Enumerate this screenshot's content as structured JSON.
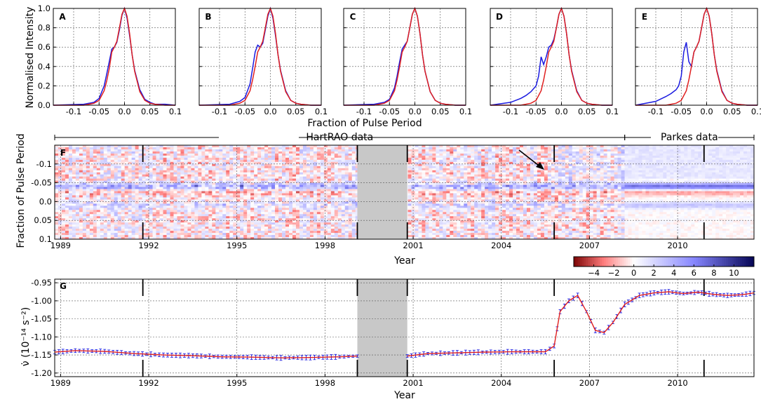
{
  "profiles": {
    "ylabel": "Normalised Intensity",
    "xlabel": "Fraction of Pulse Period",
    "y_ticks": [
      "0.0",
      "0.2",
      "0.4",
      "0.6",
      "0.8",
      "1.0"
    ],
    "x_ticks": [
      "-0.1",
      "-0.05",
      "0.0",
      "0.05",
      "0.1"
    ]
  },
  "heatmap": {
    "ylabel": "Fraction of Pulse Period",
    "xlabel": "Year",
    "hartrao_label": "HartRAO data",
    "parkes_label": "Parkes data",
    "y_ticks": [
      "-0.1",
      "-0.05",
      "0.0",
      "0.05",
      "0.1"
    ],
    "x_ticks": [
      "1989",
      "1992",
      "1995",
      "1998",
      "2001",
      "2004",
      "2007",
      "2010"
    ],
    "colorbar_ticks": [
      "−4",
      "−2",
      "0",
      "2",
      "4",
      "6",
      "8",
      "10"
    ]
  },
  "nudot": {
    "ylabel": "ν̇ (10⁻¹⁴ s⁻²)",
    "xlabel": "Year",
    "y_ticks": [
      "-0.95",
      "-1.00",
      "-1.05",
      "-1.10",
      "-1.15",
      "-1.20"
    ],
    "x_ticks": [
      "1989",
      "1992",
      "1995",
      "1998",
      "2001",
      "2004",
      "2007",
      "2010"
    ]
  },
  "colors": {
    "blue": "#1a1ae0",
    "red": "#e02020",
    "gap": "#c8c8c8"
  },
  "chart_data": [
    {
      "type": "line",
      "panel": "A",
      "xlim": [
        -0.14,
        0.1
      ],
      "ylim": [
        0,
        1.0
      ],
      "grid": true,
      "series": [
        {
          "color": "blue",
          "x": [
            -0.14,
            -0.08,
            -0.06,
            -0.05,
            -0.04,
            -0.035,
            -0.03,
            -0.025,
            -0.02,
            -0.015,
            -0.01,
            -0.005,
            0.0,
            0.005,
            0.01,
            0.015,
            0.02,
            0.03,
            0.04,
            0.05,
            0.06,
            0.08,
            0.1
          ],
          "values": [
            0.0,
            0.01,
            0.03,
            0.07,
            0.2,
            0.32,
            0.45,
            0.58,
            0.6,
            0.65,
            0.78,
            0.93,
            1.0,
            0.9,
            0.72,
            0.52,
            0.36,
            0.16,
            0.06,
            0.03,
            0.01,
            0.01,
            0.0
          ]
        },
        {
          "color": "red",
          "x": [
            -0.14,
            -0.08,
            -0.06,
            -0.05,
            -0.04,
            -0.035,
            -0.03,
            -0.025,
            -0.02,
            -0.015,
            -0.01,
            -0.005,
            0.0,
            0.005,
            0.01,
            0.015,
            0.02,
            0.03,
            0.04,
            0.05,
            0.06,
            0.08,
            0.1
          ],
          "values": [
            0.0,
            0.0,
            0.02,
            0.05,
            0.15,
            0.25,
            0.38,
            0.55,
            0.6,
            0.66,
            0.8,
            0.94,
            1.0,
            0.92,
            0.74,
            0.52,
            0.35,
            0.14,
            0.05,
            0.02,
            0.01,
            0.0,
            0.0
          ]
        }
      ]
    },
    {
      "type": "line",
      "panel": "B",
      "xlim": [
        -0.14,
        0.1
      ],
      "ylim": [
        0,
        1.0
      ],
      "grid": true,
      "series": [
        {
          "color": "blue",
          "x": [
            -0.14,
            -0.08,
            -0.06,
            -0.05,
            -0.04,
            -0.035,
            -0.03,
            -0.025,
            -0.02,
            -0.015,
            -0.01,
            -0.005,
            0.0,
            0.005,
            0.01,
            0.015,
            0.02,
            0.03,
            0.04,
            0.05,
            0.06,
            0.08,
            0.1
          ],
          "values": [
            0.0,
            0.01,
            0.04,
            0.08,
            0.22,
            0.38,
            0.55,
            0.62,
            0.6,
            0.64,
            0.78,
            0.92,
            1.0,
            0.9,
            0.72,
            0.52,
            0.36,
            0.15,
            0.05,
            0.02,
            0.01,
            0.0,
            0.0
          ]
        },
        {
          "color": "red",
          "x": [
            -0.14,
            -0.08,
            -0.06,
            -0.05,
            -0.04,
            -0.035,
            -0.03,
            -0.025,
            -0.02,
            -0.015,
            -0.01,
            -0.005,
            0.0,
            0.005,
            0.01,
            0.015,
            0.02,
            0.03,
            0.04,
            0.05,
            0.06,
            0.08,
            0.1
          ],
          "values": [
            0.0,
            0.0,
            0.02,
            0.05,
            0.15,
            0.26,
            0.4,
            0.55,
            0.6,
            0.66,
            0.8,
            0.94,
            1.0,
            0.92,
            0.74,
            0.52,
            0.35,
            0.14,
            0.05,
            0.02,
            0.01,
            0.0,
            0.0
          ]
        }
      ]
    },
    {
      "type": "line",
      "panel": "C",
      "xlim": [
        -0.14,
        0.1
      ],
      "ylim": [
        0,
        1.0
      ],
      "grid": true,
      "series": [
        {
          "color": "blue",
          "x": [
            -0.14,
            -0.08,
            -0.06,
            -0.05,
            -0.04,
            -0.035,
            -0.03,
            -0.025,
            -0.02,
            -0.015,
            -0.01,
            -0.005,
            0.0,
            0.005,
            0.01,
            0.015,
            0.02,
            0.03,
            0.04,
            0.05,
            0.06,
            0.08,
            0.1
          ],
          "values": [
            0.0,
            0.01,
            0.03,
            0.06,
            0.18,
            0.3,
            0.45,
            0.58,
            0.62,
            0.66,
            0.8,
            0.94,
            1.0,
            0.92,
            0.74,
            0.52,
            0.35,
            0.14,
            0.05,
            0.02,
            0.01,
            0.0,
            0.0
          ]
        },
        {
          "color": "red",
          "x": [
            -0.14,
            -0.08,
            -0.06,
            -0.05,
            -0.04,
            -0.035,
            -0.03,
            -0.025,
            -0.02,
            -0.015,
            -0.01,
            -0.005,
            0.0,
            0.005,
            0.01,
            0.015,
            0.02,
            0.03,
            0.04,
            0.05,
            0.06,
            0.08,
            0.1
          ],
          "values": [
            0.0,
            0.0,
            0.02,
            0.05,
            0.15,
            0.26,
            0.4,
            0.55,
            0.6,
            0.66,
            0.8,
            0.94,
            1.0,
            0.92,
            0.74,
            0.52,
            0.35,
            0.14,
            0.05,
            0.02,
            0.01,
            0.0,
            0.0
          ]
        }
      ]
    },
    {
      "type": "line",
      "panel": "D",
      "xlim": [
        -0.14,
        0.1
      ],
      "ylim": [
        0,
        1.0
      ],
      "grid": true,
      "series": [
        {
          "color": "blue",
          "x": [
            -0.14,
            -0.1,
            -0.08,
            -0.07,
            -0.06,
            -0.05,
            -0.045,
            -0.04,
            -0.035,
            -0.03,
            -0.025,
            -0.02,
            -0.015,
            -0.01,
            -0.005,
            0.0,
            0.005,
            0.01,
            0.015,
            0.02,
            0.03,
            0.04,
            0.05,
            0.06,
            0.08,
            0.1
          ],
          "values": [
            0.0,
            0.03,
            0.07,
            0.1,
            0.14,
            0.2,
            0.3,
            0.5,
            0.42,
            0.5,
            0.6,
            0.62,
            0.68,
            0.8,
            0.94,
            1.0,
            0.92,
            0.74,
            0.52,
            0.36,
            0.15,
            0.05,
            0.02,
            0.01,
            0.0,
            0.0
          ]
        },
        {
          "color": "red",
          "x": [
            -0.14,
            -0.08,
            -0.06,
            -0.05,
            -0.04,
            -0.035,
            -0.03,
            -0.025,
            -0.02,
            -0.015,
            -0.01,
            -0.005,
            0.0,
            0.005,
            0.01,
            0.015,
            0.02,
            0.03,
            0.04,
            0.05,
            0.06,
            0.08,
            0.1
          ],
          "values": [
            0.0,
            0.0,
            0.02,
            0.05,
            0.15,
            0.26,
            0.4,
            0.55,
            0.6,
            0.66,
            0.8,
            0.94,
            1.0,
            0.92,
            0.74,
            0.52,
            0.35,
            0.14,
            0.05,
            0.02,
            0.01,
            0.0,
            0.0
          ]
        }
      ]
    },
    {
      "type": "line",
      "panel": "E",
      "xlim": [
        -0.14,
        0.1
      ],
      "ylim": [
        0,
        1.0
      ],
      "grid": true,
      "series": [
        {
          "color": "blue",
          "x": [
            -0.14,
            -0.1,
            -0.08,
            -0.07,
            -0.06,
            -0.055,
            -0.05,
            -0.045,
            -0.04,
            -0.035,
            -0.03,
            -0.025,
            -0.02,
            -0.015,
            -0.01,
            -0.005,
            0.0,
            0.005,
            0.01,
            0.015,
            0.02,
            0.03,
            0.04,
            0.05,
            0.06,
            0.08,
            0.1
          ],
          "values": [
            0.0,
            0.04,
            0.09,
            0.12,
            0.16,
            0.2,
            0.3,
            0.55,
            0.65,
            0.45,
            0.4,
            0.55,
            0.6,
            0.66,
            0.8,
            0.94,
            1.0,
            0.92,
            0.74,
            0.52,
            0.36,
            0.15,
            0.05,
            0.02,
            0.01,
            0.0,
            0.0
          ]
        },
        {
          "color": "red",
          "x": [
            -0.14,
            -0.08,
            -0.06,
            -0.05,
            -0.04,
            -0.035,
            -0.03,
            -0.025,
            -0.02,
            -0.015,
            -0.01,
            -0.005,
            0.0,
            0.005,
            0.01,
            0.015,
            0.02,
            0.03,
            0.04,
            0.05,
            0.06,
            0.08,
            0.1
          ],
          "values": [
            0.0,
            0.0,
            0.02,
            0.05,
            0.15,
            0.26,
            0.4,
            0.55,
            0.6,
            0.66,
            0.8,
            0.94,
            1.0,
            0.92,
            0.74,
            0.52,
            0.35,
            0.14,
            0.05,
            0.02,
            0.01,
            0.0,
            0.0
          ]
        }
      ]
    },
    {
      "type": "heatmap",
      "panel": "F",
      "xlim": [
        1988.8,
        2012.6
      ],
      "ylim": [
        0.1,
        -0.15
      ],
      "gap": [
        1999.1,
        2000.8
      ],
      "vertical_markers": [
        1991.8,
        1999.1,
        2000.8,
        2005.8,
        2010.9
      ],
      "hartrao_range": [
        1988.8,
        2008.2
      ],
      "parkes_range": [
        2008.2,
        2012.6
      ],
      "colorbar_range": [
        -6,
        12
      ],
      "bands": [
        {
          "y": -0.04,
          "value": 4.5
        },
        {
          "y": -0.025,
          "value": -1.5
        },
        {
          "y": 0.01,
          "value": 1.8
        }
      ]
    },
    {
      "type": "line",
      "panel": "G",
      "xlim": [
        1988.8,
        2012.6
      ],
      "ylim": [
        -1.21,
        -0.94
      ],
      "grid": true,
      "gap": [
        1999.1,
        2000.8
      ],
      "vertical_markers": [
        1991.8,
        1999.1,
        2000.8,
        2005.8,
        2010.9
      ],
      "series": [
        {
          "x": [
            1988.8,
            1989.5,
            1990.5,
            1991.5,
            1992.5,
            1993.5,
            1994.5,
            1995.5,
            1996.5,
            1997.5,
            1998.5,
            1999.1
          ],
          "values": [
            -1.142,
            -1.138,
            -1.14,
            -1.146,
            -1.15,
            -1.152,
            -1.155,
            -1.156,
            -1.158,
            -1.157,
            -1.155,
            -1.153
          ]
        },
        {
          "x": [
            2000.8,
            2001.5,
            2002.5,
            2003.5,
            2004.5,
            2005.5,
            2005.8,
            2006.0,
            2006.3,
            2006.6,
            2006.9,
            2007.2,
            2007.5,
            2007.8,
            2008.2,
            2008.7,
            2009.2,
            2009.7,
            2010.2,
            2010.7,
            2011.2,
            2011.7,
            2012.2,
            2012.6
          ],
          "values": [
            -1.153,
            -1.146,
            -1.144,
            -1.142,
            -1.141,
            -1.141,
            -1.125,
            -1.03,
            -1.0,
            -0.985,
            -1.03,
            -1.082,
            -1.088,
            -1.06,
            -1.01,
            -0.985,
            -0.978,
            -0.975,
            -0.98,
            -0.976,
            -0.982,
            -0.985,
            -0.983,
            -0.978
          ]
        }
      ]
    }
  ]
}
